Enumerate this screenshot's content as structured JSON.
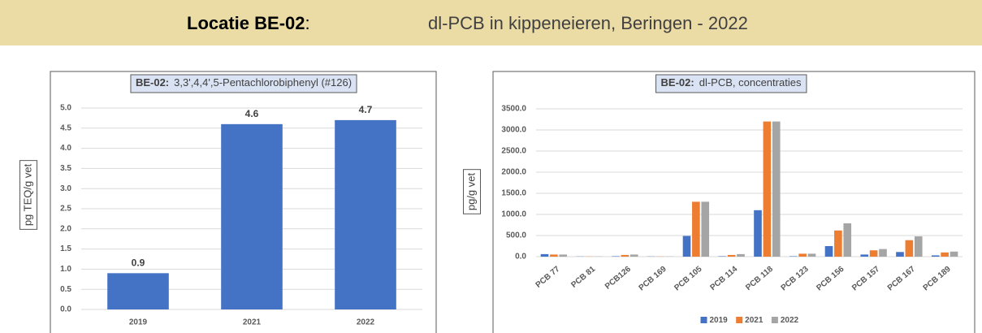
{
  "header": {
    "label": "Locatie BE-02",
    "separator": ":",
    "subject": "dl-PCB in kippeneieren, Beringen - 2022"
  },
  "chart_data": [
    {
      "type": "bar",
      "title_label": "BE-02:",
      "title": "3,3',4,4',5-Pentachlorobiphenyl (#126)",
      "y_label": "pg TEQ/g vet",
      "categories": [
        "2019",
        "2021",
        "2022"
      ],
      "values": [
        0.9,
        4.6,
        4.7
      ],
      "color": "#4472c4",
      "data_labels": true,
      "ylim": [
        0,
        5
      ],
      "grid": true,
      "yticks": [
        {
          "value": 0,
          "label": "0.0"
        },
        {
          "value": 0.5,
          "label": "0.5"
        },
        {
          "value": 1,
          "label": "1.0"
        },
        {
          "value": 1.5,
          "label": "1.5"
        },
        {
          "value": 2,
          "label": "2.0"
        },
        {
          "value": 2.5,
          "label": "2.5"
        },
        {
          "value": 3,
          "label": "3.0"
        },
        {
          "value": 3.5,
          "label": "3.5"
        },
        {
          "value": 4,
          "label": "4.0"
        },
        {
          "value": 4.5,
          "label": "4.5"
        },
        {
          "value": 5,
          "label": "5.0"
        }
      ]
    },
    {
      "type": "grouped-bar",
      "title_label": "BE-02:",
      "title": "dl-PCB, concentraties",
      "y_label": "pg/g vet",
      "categories": [
        "PCB 77",
        "PCB 81",
        "PCB126",
        "PCB 169",
        "PCB 105",
        "PCB 114",
        "PCB 118",
        "PCB 123",
        "PCB 156",
        "PCB 157",
        "PCB 167",
        "PCB 189"
      ],
      "series": [
        {
          "name": "2019",
          "color": "#4472c4",
          "values": [
            60,
            5,
            10,
            5,
            490,
            10,
            1100,
            10,
            250,
            50,
            110,
            30
          ]
        },
        {
          "name": "2021",
          "color": "#ed7d31",
          "values": [
            50,
            5,
            40,
            5,
            1300,
            40,
            3200,
            70,
            620,
            150,
            390,
            100
          ]
        },
        {
          "name": "2022",
          "color": "#a5a5a5",
          "values": [
            50,
            5,
            50,
            5,
            1300,
            60,
            3200,
            70,
            790,
            180,
            480,
            120
          ]
        }
      ],
      "ylim": [
        0,
        3500
      ],
      "grid": true,
      "legend": "bottom",
      "yticks": [
        {
          "value": 0,
          "label": "0.0"
        },
        {
          "value": 500,
          "label": "500.0"
        },
        {
          "value": 1000,
          "label": "1000.0"
        },
        {
          "value": 1500,
          "label": "1500.0"
        },
        {
          "value": 2000,
          "label": "2000.0"
        },
        {
          "value": 2500,
          "label": "2500.0"
        },
        {
          "value": 3000,
          "label": "3000.0"
        },
        {
          "value": 3500,
          "label": "3500.0"
        }
      ]
    }
  ]
}
